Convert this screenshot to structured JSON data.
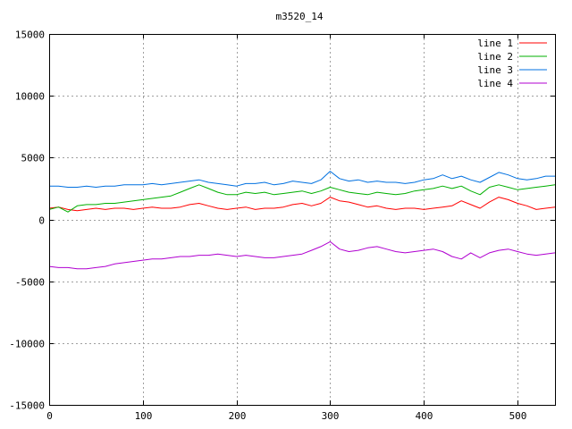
{
  "chart_data": {
    "type": "line",
    "title": "m3520_14",
    "xlabel": "",
    "ylabel": "",
    "xlim": [
      0,
      540
    ],
    "ylim": [
      -15000,
      15000
    ],
    "xticks": [
      0,
      100,
      200,
      300,
      400,
      500
    ],
    "yticks": [
      -15000,
      -10000,
      -5000,
      0,
      5000,
      10000,
      15000
    ],
    "grid": true,
    "legend_position": "top-right",
    "x": [
      0,
      10,
      20,
      30,
      40,
      50,
      60,
      70,
      80,
      90,
      100,
      110,
      120,
      130,
      140,
      150,
      160,
      170,
      180,
      190,
      200,
      210,
      220,
      230,
      240,
      250,
      260,
      270,
      280,
      290,
      300,
      310,
      320,
      330,
      340,
      350,
      360,
      370,
      380,
      390,
      400,
      410,
      420,
      430,
      440,
      450,
      460,
      470,
      480,
      490,
      500,
      510,
      520,
      530,
      540
    ],
    "series": [
      {
        "name": "line 1",
        "color": "#ff0000",
        "values": [
          900,
          1000,
          800,
          700,
          800,
          900,
          800,
          900,
          900,
          800,
          900,
          1000,
          900,
          900,
          1000,
          1200,
          1300,
          1100,
          900,
          800,
          900,
          1000,
          800,
          900,
          900,
          1000,
          1200,
          1300,
          1100,
          1300,
          1800,
          1500,
          1400,
          1200,
          1000,
          1100,
          900,
          800,
          900,
          900,
          800,
          900,
          1000,
          1100,
          1500,
          1200,
          900,
          1400,
          1800,
          1600,
          1300,
          1100,
          800,
          900,
          1000
        ]
      },
      {
        "name": "line 2",
        "color": "#00b000",
        "values": [
          800,
          1000,
          600,
          1100,
          1200,
          1200,
          1300,
          1300,
          1400,
          1500,
          1600,
          1700,
          1800,
          1900,
          2200,
          2500,
          2800,
          2500,
          2200,
          2000,
          2000,
          2200,
          2100,
          2200,
          2000,
          2100,
          2200,
          2300,
          2100,
          2300,
          2600,
          2400,
          2200,
          2100,
          2000,
          2200,
          2100,
          2000,
          2100,
          2300,
          2400,
          2500,
          2700,
          2500,
          2700,
          2300,
          2000,
          2600,
          2800,
          2600,
          2400,
          2500,
          2600,
          2700,
          2800
        ]
      },
      {
        "name": "line 3",
        "color": "#0070e0",
        "values": [
          2700,
          2700,
          2600,
          2600,
          2700,
          2600,
          2700,
          2700,
          2800,
          2800,
          2800,
          2900,
          2800,
          2900,
          3000,
          3100,
          3200,
          3000,
          2900,
          2800,
          2700,
          2900,
          2900,
          3000,
          2800,
          2900,
          3100,
          3000,
          2900,
          3200,
          3900,
          3300,
          3100,
          3200,
          3000,
          3100,
          3000,
          3000,
          2900,
          3000,
          3200,
          3300,
          3600,
          3300,
          3500,
          3200,
          3000,
          3400,
          3800,
          3600,
          3300,
          3200,
          3300,
          3500,
          3500
        ]
      },
      {
        "name": "line 4",
        "color": "#b000d0",
        "values": [
          -3800,
          -3900,
          -3900,
          -4000,
          -4000,
          -3900,
          -3800,
          -3600,
          -3500,
          -3400,
          -3300,
          -3200,
          -3200,
          -3100,
          -3000,
          -3000,
          -2900,
          -2900,
          -2800,
          -2900,
          -3000,
          -2900,
          -3000,
          -3100,
          -3100,
          -3000,
          -2900,
          -2800,
          -2500,
          -2200,
          -1800,
          -2400,
          -2600,
          -2500,
          -2300,
          -2200,
          -2400,
          -2600,
          -2700,
          -2600,
          -2500,
          -2400,
          -2600,
          -3000,
          -3200,
          -2700,
          -3100,
          -2700,
          -2500,
          -2400,
          -2600,
          -2800,
          -2900,
          -2800,
          -2700
        ]
      }
    ]
  }
}
